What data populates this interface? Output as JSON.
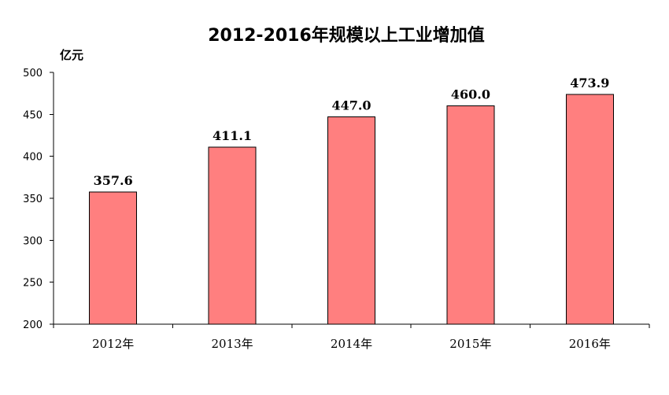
{
  "chart_data": {
    "type": "bar",
    "title": "2012-2016年规模以上工业增加值",
    "unit": "亿元",
    "xlabel": "",
    "ylabel": "",
    "categories": [
      "2012年",
      "2013年",
      "2014年",
      "2015年",
      "2016年"
    ],
    "values": [
      357.6,
      411.1,
      447.0,
      460.0,
      473.9
    ],
    "data_labels": [
      "357.6",
      "411.1",
      "447.0",
      "460.0",
      "473.9"
    ],
    "ylim": [
      200,
      500
    ],
    "yticks": [
      200,
      250,
      300,
      350,
      400,
      450,
      500
    ],
    "bar_color": "#FF7F7F",
    "grid": false,
    "legend": "none"
  }
}
